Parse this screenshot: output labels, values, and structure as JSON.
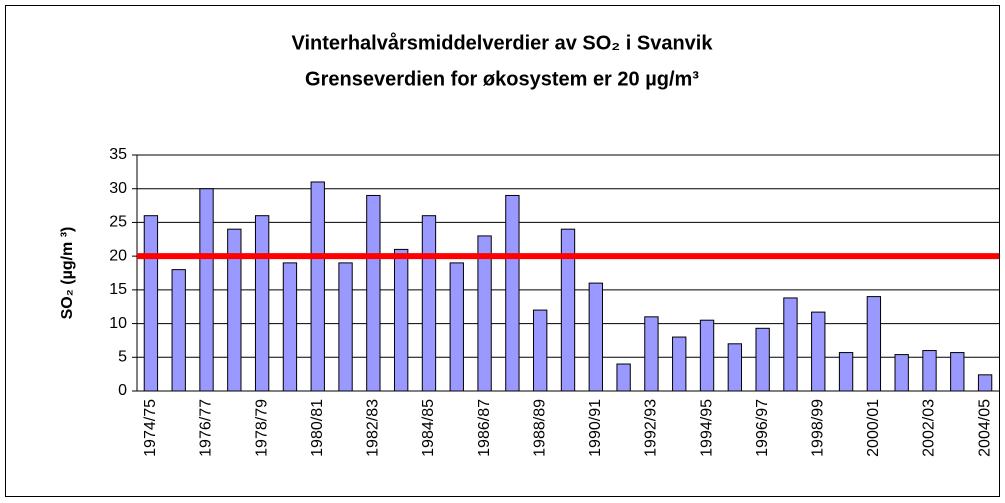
{
  "chart_data": {
    "type": "bar",
    "title": "Vinterhalvårsmiddelverdier av SO₂ i Svanvik",
    "subtitle": "Grenseverdien for økosystem er 20 µg/m³",
    "y_label": "SO₂ (µg/m ³)",
    "categories": [
      "1974/75",
      null,
      "1976/77",
      null,
      "1978/79",
      null,
      "1980/81",
      null,
      "1982/83",
      null,
      "1984/85",
      null,
      "1986/87",
      null,
      "1988/89",
      null,
      "1990/91",
      null,
      "1992/93",
      null,
      "1994/95",
      null,
      "1996/97",
      null,
      "1998/99",
      null,
      "2000/01",
      null,
      "2002/03",
      null,
      "2004/05"
    ],
    "values": [
      26,
      18,
      30,
      24,
      26,
      19,
      31,
      19,
      29,
      21,
      26,
      19,
      23,
      29,
      12,
      24,
      16,
      4,
      11,
      8,
      10.5,
      7,
      9.3,
      13.8,
      11.7,
      5.7,
      14,
      5.4,
      6,
      5.7,
      2.4
    ],
    "color": "#9999ff",
    "threshold": 20,
    "threshold_color": "#ff0000",
    "ylim": [
      0,
      35
    ],
    "yticks": [
      0,
      5,
      10,
      15,
      20,
      25,
      30,
      35
    ],
    "grid": true
  }
}
